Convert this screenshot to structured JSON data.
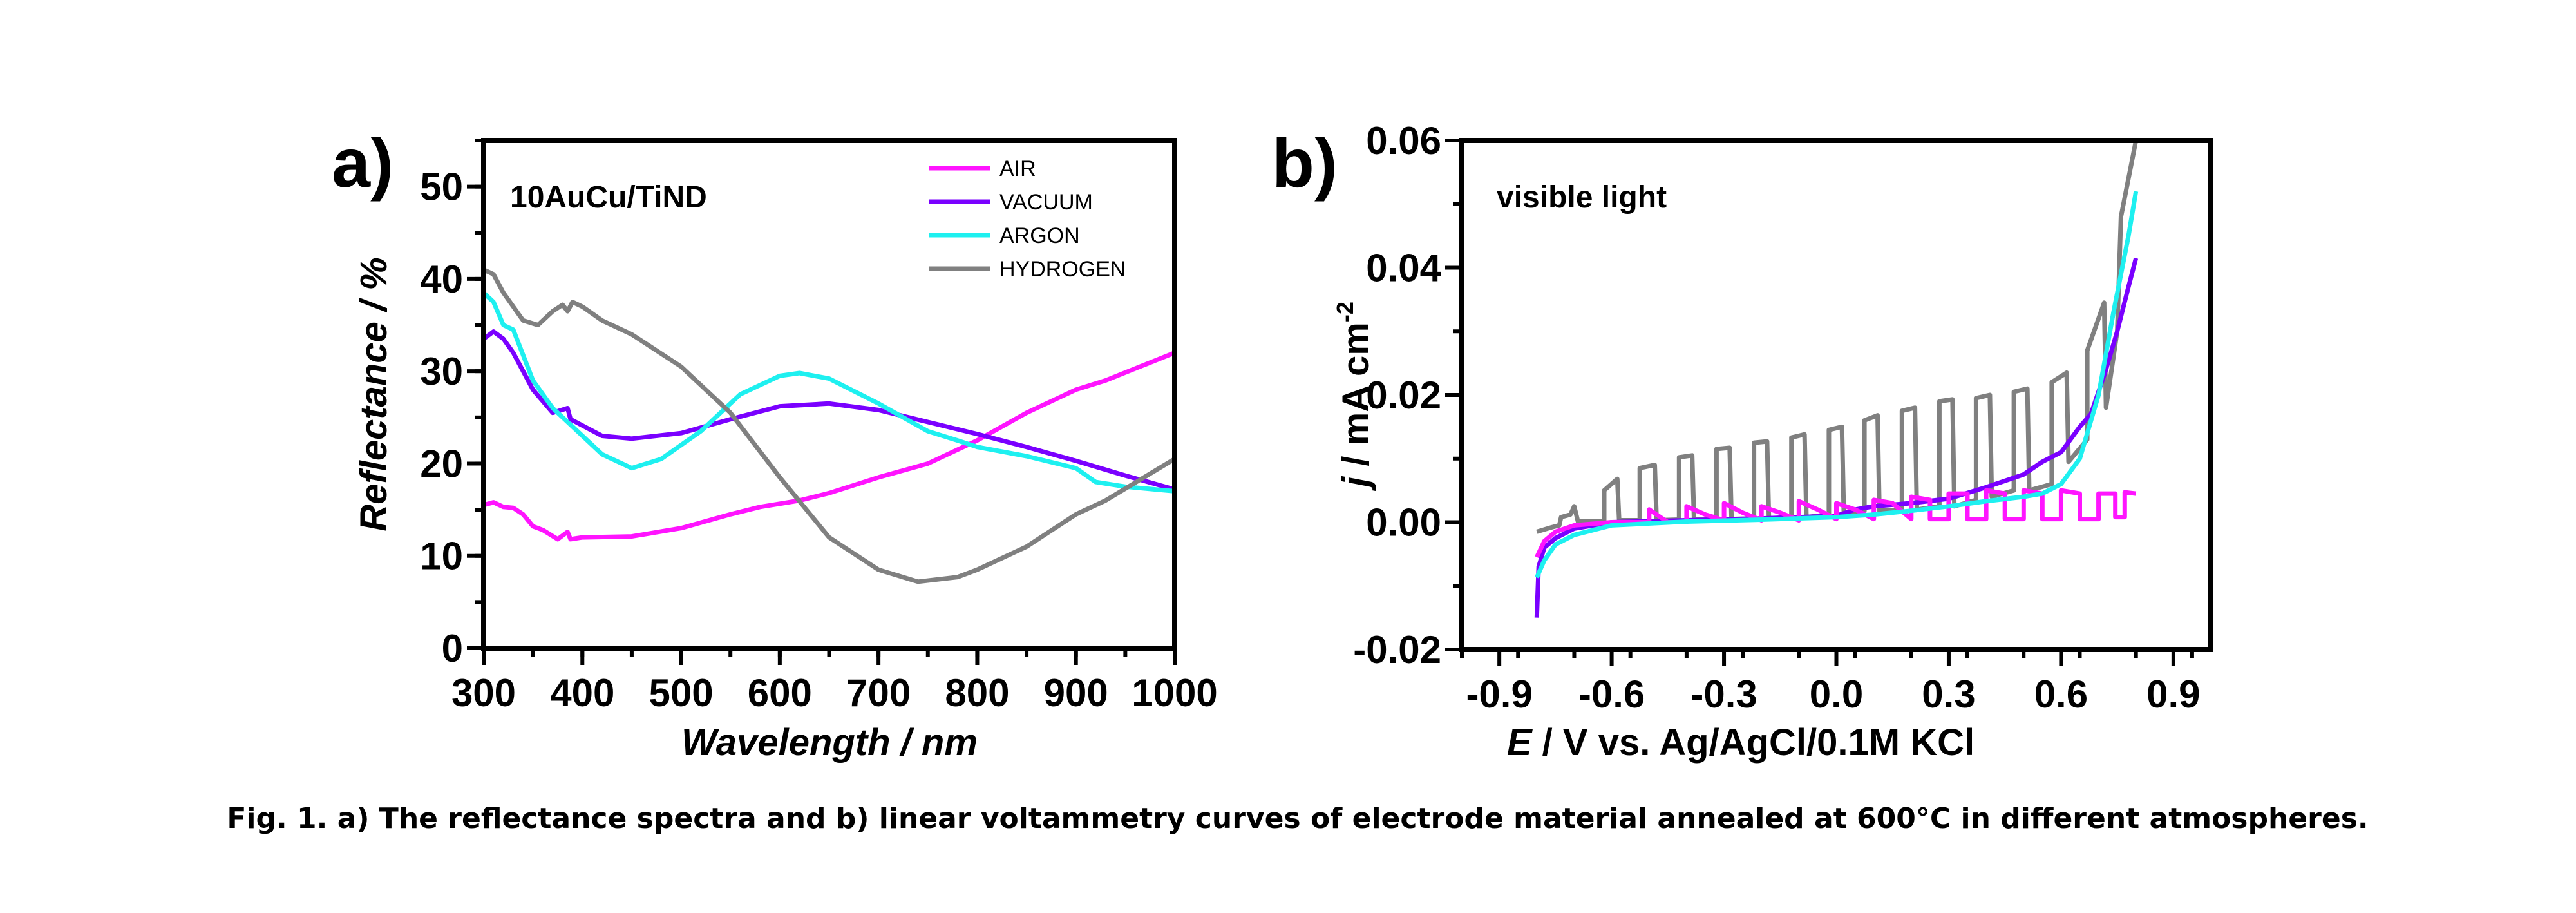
{
  "caption": "Fig. 1. a) The reflectance spectra and b) linear voltammetry curves of electrode material annealed at 600°C in different atmospheres.",
  "chart_data": [
    {
      "type": "line",
      "panel_label": "a)",
      "annotation": "10AuCu/TiND",
      "xlabel": "Wavelength / nm",
      "ylabel": "Reflectance / %",
      "xlim": [
        300,
        1000
      ],
      "ylim": [
        0,
        55
      ],
      "xticks": [
        300,
        400,
        500,
        600,
        700,
        800,
        900,
        1000
      ],
      "yticks": [
        0,
        10,
        20,
        30,
        40,
        50
      ],
      "grid": false,
      "legend": "top-right",
      "series": [
        {
          "name": "AIR",
          "color": "#ff14ff",
          "points": [
            [
              300,
              15.5
            ],
            [
              310,
              15.8
            ],
            [
              320,
              15.3
            ],
            [
              330,
              15.2
            ],
            [
              340,
              14.5
            ],
            [
              350,
              13.2
            ],
            [
              360,
              12.8
            ],
            [
              375,
              11.8
            ],
            [
              385,
              12.6
            ],
            [
              388,
              11.8
            ],
            [
              400,
              12.0
            ],
            [
              450,
              12.1
            ],
            [
              500,
              13.0
            ],
            [
              550,
              14.5
            ],
            [
              580,
              15.3
            ],
            [
              620,
              16.0
            ],
            [
              650,
              16.8
            ],
            [
              700,
              18.5
            ],
            [
              750,
              20.0
            ],
            [
              800,
              22.5
            ],
            [
              850,
              25.5
            ],
            [
              900,
              28.0
            ],
            [
              930,
              29.0
            ],
            [
              1000,
              32.0
            ]
          ]
        },
        {
          "name": "VACUUM",
          "color": "#7a00ff",
          "points": [
            [
              300,
              33.5
            ],
            [
              310,
              34.3
            ],
            [
              320,
              33.5
            ],
            [
              330,
              32.0
            ],
            [
              350,
              28.0
            ],
            [
              370,
              25.5
            ],
            [
              385,
              26.0
            ],
            [
              388,
              24.8
            ],
            [
              420,
              23.0
            ],
            [
              450,
              22.7
            ],
            [
              500,
              23.3
            ],
            [
              550,
              24.8
            ],
            [
              600,
              26.2
            ],
            [
              650,
              26.5
            ],
            [
              700,
              25.8
            ],
            [
              750,
              24.5
            ],
            [
              800,
              23.2
            ],
            [
              850,
              21.8
            ],
            [
              900,
              20.3
            ],
            [
              950,
              18.7
            ],
            [
              1000,
              17.2
            ]
          ]
        },
        {
          "name": "ARGON",
          "color": "#1ef0f0",
          "points": [
            [
              300,
              38.5
            ],
            [
              310,
              37.5
            ],
            [
              320,
              35.0
            ],
            [
              330,
              34.5
            ],
            [
              350,
              29.0
            ],
            [
              370,
              26.0
            ],
            [
              390,
              24.0
            ],
            [
              420,
              21.0
            ],
            [
              450,
              19.5
            ],
            [
              480,
              20.5
            ],
            [
              520,
              23.5
            ],
            [
              560,
              27.5
            ],
            [
              600,
              29.5
            ],
            [
              620,
              29.8
            ],
            [
              650,
              29.2
            ],
            [
              700,
              26.5
            ],
            [
              750,
              23.5
            ],
            [
              780,
              22.5
            ],
            [
              800,
              21.8
            ],
            [
              850,
              20.8
            ],
            [
              900,
              19.5
            ],
            [
              920,
              18.0
            ],
            [
              950,
              17.5
            ],
            [
              1000,
              17.0
            ]
          ]
        },
        {
          "name": "HYDROGEN",
          "color": "#808080",
          "points": [
            [
              300,
              41.0
            ],
            [
              310,
              40.5
            ],
            [
              320,
              38.5
            ],
            [
              330,
              37.0
            ],
            [
              340,
              35.5
            ],
            [
              355,
              35.0
            ],
            [
              370,
              36.5
            ],
            [
              380,
              37.2
            ],
            [
              385,
              36.5
            ],
            [
              390,
              37.5
            ],
            [
              400,
              37.0
            ],
            [
              420,
              35.5
            ],
            [
              450,
              34.0
            ],
            [
              500,
              30.5
            ],
            [
              550,
              25.5
            ],
            [
              600,
              18.5
            ],
            [
              650,
              12.0
            ],
            [
              700,
              8.5
            ],
            [
              740,
              7.2
            ],
            [
              780,
              7.7
            ],
            [
              800,
              8.5
            ],
            [
              850,
              11.0
            ],
            [
              900,
              14.5
            ],
            [
              930,
              16.0
            ],
            [
              1000,
              20.5
            ]
          ]
        }
      ]
    },
    {
      "type": "line",
      "panel_label": "b)",
      "annotation": "visible light",
      "xlabel": "E / V vs. Ag/AgCl/0.1M KCl",
      "ylabel": "j / mA cm-2",
      "xlim": [
        -1.0,
        1.0
      ],
      "ylim": [
        -0.02,
        0.06
      ],
      "xticks": [
        "-0.9",
        "-0.6",
        "-0.3",
        "0.0",
        "0.3",
        "0.6",
        "0.9"
      ],
      "yticks": [
        "-0.02",
        "0.00",
        "0.02",
        "0.04",
        "0.06"
      ],
      "grid": false,
      "series": [
        {
          "name": "HYDROGEN",
          "color": "#808080",
          "points": [
            [
              -0.8,
              -0.0015
            ],
            [
              -0.76,
              -0.0008
            ],
            [
              -0.74,
              -0.0005
            ],
            [
              -0.735,
              0.0008
            ],
            [
              -0.71,
              0.0012
            ],
            [
              -0.7,
              0.0025
            ],
            [
              -0.69,
              0.0001
            ],
            [
              -0.62,
              0.0002
            ],
            [
              -0.62,
              0.005
            ],
            [
              -0.585,
              0.0068
            ],
            [
              -0.58,
              0.0003
            ],
            [
              -0.525,
              0.0003
            ],
            [
              -0.525,
              0.0085
            ],
            [
              -0.485,
              0.009
            ],
            [
              -0.48,
              0.0003
            ],
            [
              -0.42,
              0.0004
            ],
            [
              -0.42,
              0.0102
            ],
            [
              -0.385,
              0.0105
            ],
            [
              -0.38,
              0.0004
            ],
            [
              -0.32,
              0.0005
            ],
            [
              -0.32,
              0.0115
            ],
            [
              -0.285,
              0.0117
            ],
            [
              -0.28,
              0.0005
            ],
            [
              -0.22,
              0.0006
            ],
            [
              -0.22,
              0.0125
            ],
            [
              -0.185,
              0.0127
            ],
            [
              -0.18,
              0.0006
            ],
            [
              -0.12,
              0.0008
            ],
            [
              -0.12,
              0.0133
            ],
            [
              -0.085,
              0.0138
            ],
            [
              -0.08,
              0.0008
            ],
            [
              -0.02,
              0.0012
            ],
            [
              -0.02,
              0.0145
            ],
            [
              0.015,
              0.015
            ],
            [
              0.02,
              0.0012
            ],
            [
              0.075,
              0.0018
            ],
            [
              0.075,
              0.016
            ],
            [
              0.11,
              0.0168
            ],
            [
              0.115,
              0.0018
            ],
            [
              0.175,
              0.002
            ],
            [
              0.175,
              0.0175
            ],
            [
              0.21,
              0.018
            ],
            [
              0.215,
              0.002
            ],
            [
              0.275,
              0.0025
            ],
            [
              0.275,
              0.019
            ],
            [
              0.31,
              0.0193
            ],
            [
              0.315,
              0.0025
            ],
            [
              0.373,
              0.0035
            ],
            [
              0.373,
              0.0195
            ],
            [
              0.41,
              0.02
            ],
            [
              0.415,
              0.004
            ],
            [
              0.474,
              0.005
            ],
            [
              0.474,
              0.0205
            ],
            [
              0.51,
              0.021
            ],
            [
              0.515,
              0.005
            ],
            [
              0.575,
              0.006
            ],
            [
              0.575,
              0.022
            ],
            [
              0.615,
              0.0235
            ],
            [
              0.62,
              0.0095
            ],
            [
              0.67,
              0.013
            ],
            [
              0.67,
              0.027
            ],
            [
              0.715,
              0.0345
            ],
            [
              0.72,
              0.018
            ],
            [
              0.75,
              0.03
            ],
            [
              0.76,
              0.048
            ],
            [
              0.8,
              0.06
            ]
          ]
        },
        {
          "name": "VACUUM",
          "color": "#7a00ff",
          "points": [
            [
              -0.8,
              -0.015
            ],
            [
              -0.795,
              -0.007
            ],
            [
              -0.78,
              -0.004
            ],
            [
              -0.75,
              -0.0025
            ],
            [
              -0.7,
              -0.001
            ],
            [
              -0.6,
              0
            ],
            [
              -0.4,
              0.0003
            ],
            [
              -0.2,
              0.0006
            ],
            [
              0,
              0.001
            ],
            [
              0.05,
              0.002
            ],
            [
              0.1,
              0.0025
            ],
            [
              0.2,
              0.003
            ],
            [
              0.3,
              0.0037
            ],
            [
              0.4,
              0.0055
            ],
            [
              0.45,
              0.0065
            ],
            [
              0.5,
              0.0075
            ],
            [
              0.55,
              0.0095
            ],
            [
              0.6,
              0.011
            ],
            [
              0.65,
              0.015
            ],
            [
              0.68,
              0.017
            ],
            [
              0.72,
              0.024
            ],
            [
              0.75,
              0.03
            ],
            [
              0.78,
              0.037
            ],
            [
              0.8,
              0.0415
            ]
          ]
        },
        {
          "name": "AIR",
          "color": "#ff14ff",
          "points": [
            [
              -0.8,
              -0.0055
            ],
            [
              -0.78,
              -0.003
            ],
            [
              -0.75,
              -0.0015
            ],
            [
              -0.7,
              -0.0005
            ],
            [
              -0.6,
              0
            ],
            [
              -0.5,
              0
            ],
            [
              -0.5,
              0.002
            ],
            [
              -0.48,
              0.0012
            ],
            [
              -0.45,
              0
            ],
            [
              -0.4,
              0
            ],
            [
              -0.4,
              0.0025
            ],
            [
              -0.35,
              0.0012
            ],
            [
              -0.3,
              0.0003
            ],
            [
              -0.3,
              0.003
            ],
            [
              -0.25,
              0.0015
            ],
            [
              -0.2,
              0.0003
            ],
            [
              -0.2,
              0.0025
            ],
            [
              -0.15,
              0.0015
            ],
            [
              -0.1,
              0.0003
            ],
            [
              -0.1,
              0.0033
            ],
            [
              -0.05,
              0.002
            ],
            [
              0,
              0.0005
            ],
            [
              0,
              0.003
            ],
            [
              0.05,
              0.002
            ],
            [
              0.1,
              0.0005
            ],
            [
              0.1,
              0.0035
            ],
            [
              0.15,
              0.003
            ],
            [
              0.2,
              0.0005
            ],
            [
              0.2,
              0.004
            ],
            [
              0.25,
              0.0035
            ],
            [
              0.25,
              0.0005
            ],
            [
              0.3,
              0.0005
            ],
            [
              0.3,
              0.0045
            ],
            [
              0.35,
              0.0045
            ],
            [
              0.35,
              0.0005
            ],
            [
              0.4,
              0.0005
            ],
            [
              0.4,
              0.005
            ],
            [
              0.45,
              0.0045
            ],
            [
              0.45,
              0.0005
            ],
            [
              0.5,
              0.0005
            ],
            [
              0.5,
              0.005
            ],
            [
              0.55,
              0.0045
            ],
            [
              0.55,
              0.0005
            ],
            [
              0.6,
              0.0005
            ],
            [
              0.6,
              0.005
            ],
            [
              0.65,
              0.0045
            ],
            [
              0.65,
              0.0005
            ],
            [
              0.7,
              0.0005
            ],
            [
              0.7,
              0.0045
            ],
            [
              0.745,
              0.0045
            ],
            [
              0.745,
              0.0008
            ],
            [
              0.77,
              0.0008
            ],
            [
              0.77,
              0.0047
            ],
            [
              0.8,
              0.0045
            ]
          ]
        },
        {
          "name": "ARGON",
          "color": "#1ef0f0",
          "points": [
            [
              -0.8,
              -0.0087
            ],
            [
              -0.78,
              -0.006
            ],
            [
              -0.75,
              -0.0035
            ],
            [
              -0.7,
              -0.002
            ],
            [
              -0.6,
              -0.0005
            ],
            [
              -0.4,
              0.0001
            ],
            [
              -0.2,
              0.0004
            ],
            [
              0,
              0.0008
            ],
            [
              0.1,
              0.0012
            ],
            [
              0.2,
              0.0018
            ],
            [
              0.3,
              0.0025
            ],
            [
              0.4,
              0.0033
            ],
            [
              0.5,
              0.004
            ],
            [
              0.55,
              0.0045
            ],
            [
              0.6,
              0.006
            ],
            [
              0.65,
              0.01
            ],
            [
              0.7,
              0.02
            ],
            [
              0.74,
              0.033
            ],
            [
              0.78,
              0.045
            ],
            [
              0.8,
              0.052
            ]
          ]
        }
      ]
    }
  ]
}
